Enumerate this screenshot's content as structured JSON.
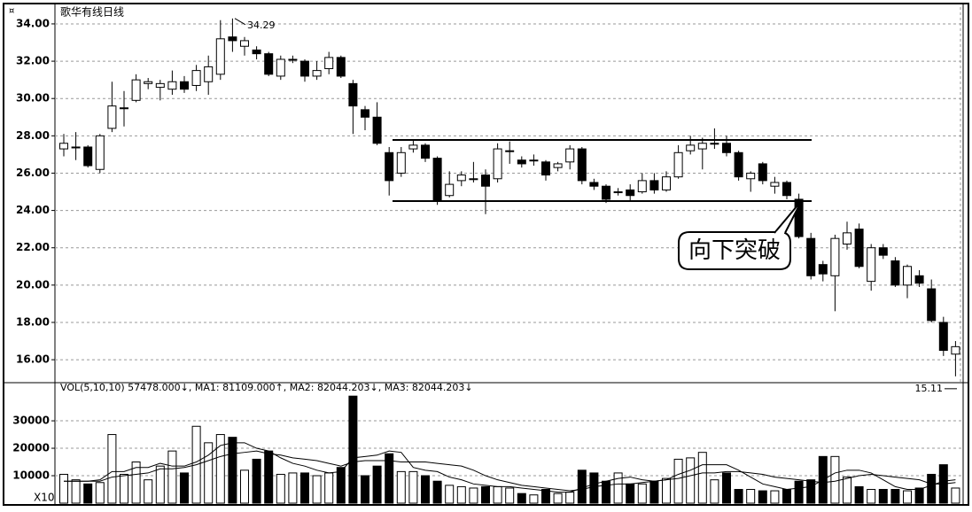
{
  "chart_data": [
    {
      "type": "candlestick",
      "title": "歌华有线日线",
      "open": [
        27.3,
        27.4,
        27.4,
        26.2,
        28.4,
        29.5,
        29.9,
        30.8,
        30.6,
        30.5,
        30.9,
        30.7,
        30.9,
        31.3,
        33.3,
        32.8,
        32.6,
        32.4,
        31.2,
        32.1,
        32.0,
        31.2,
        31.6,
        32.2,
        30.8,
        29.4,
        29.0,
        27.1,
        26.0,
        27.3,
        27.5,
        26.8,
        24.8,
        25.6,
        25.7,
        25.9,
        25.7,
        27.2,
        26.7,
        26.7,
        26.6,
        26.3,
        26.6,
        27.3,
        25.5,
        25.3,
        25.0,
        25.1,
        25.0,
        25.6,
        25.1,
        25.8,
        27.2,
        27.3,
        27.6,
        27.6,
        27.1,
        25.7,
        26.5,
        25.3,
        25.5,
        24.6,
        22.5,
        21.1,
        20.5,
        22.2,
        23.0,
        20.2,
        22.0,
        21.3,
        20.0,
        20.5,
        19.8,
        18.0,
        16.3
      ],
      "high": [
        28.1,
        28.2,
        27.5,
        28.1,
        30.9,
        30.4,
        31.3,
        31.1,
        31.0,
        31.5,
        31.2,
        31.8,
        32.3,
        34.2,
        34.29,
        33.3,
        32.8,
        32.5,
        32.3,
        32.3,
        32.1,
        32.0,
        32.5,
        32.3,
        31.0,
        29.6,
        29.8,
        27.4,
        27.4,
        27.8,
        27.6,
        26.9,
        26.1,
        26.1,
        26.6,
        26.2,
        27.6,
        27.7,
        26.9,
        27.0,
        26.7,
        26.6,
        27.5,
        27.4,
        25.7,
        25.4,
        25.2,
        25.4,
        26.0,
        26.0,
        26.1,
        27.5,
        28.0,
        27.9,
        28.4,
        28.0,
        27.2,
        26.1,
        26.6,
        25.8,
        25.6,
        24.9,
        22.8,
        21.3,
        22.7,
        23.4,
        23.3,
        22.2,
        22.2,
        21.5,
        21.1,
        20.8,
        20.3,
        18.3,
        17.0
      ],
      "low": [
        26.9,
        26.7,
        26.3,
        26.0,
        28.2,
        28.5,
        29.8,
        30.5,
        29.9,
        30.2,
        30.3,
        30.4,
        30.2,
        31.0,
        32.5,
        32.3,
        32.1,
        31.2,
        31.0,
        31.9,
        30.9,
        31.0,
        31.3,
        31.1,
        28.1,
        28.3,
        27.5,
        24.8,
        25.8,
        27.1,
        26.6,
        24.3,
        24.7,
        25.3,
        25.5,
        23.8,
        25.5,
        26.5,
        26.3,
        26.4,
        25.6,
        26.1,
        26.2,
        25.4,
        25.1,
        24.4,
        24.8,
        24.5,
        24.9,
        24.9,
        25.0,
        25.7,
        27.0,
        26.2,
        27.3,
        26.9,
        25.6,
        25.0,
        25.4,
        24.9,
        24.6,
        22.5,
        20.3,
        20.2,
        18.6,
        21.9,
        20.9,
        19.7,
        21.4,
        19.9,
        19.3,
        19.9,
        18.0,
        16.2,
        15.11
      ],
      "close": [
        27.6,
        27.4,
        26.4,
        28.0,
        29.6,
        29.5,
        31.0,
        30.9,
        30.8,
        30.9,
        30.5,
        31.5,
        31.7,
        33.2,
        33.1,
        33.1,
        32.4,
        31.3,
        32.1,
        32.1,
        31.2,
        31.5,
        32.2,
        31.2,
        29.6,
        29.0,
        27.6,
        25.6,
        27.1,
        27.5,
        26.8,
        24.5,
        25.4,
        25.9,
        25.7,
        25.3,
        27.3,
        27.2,
        26.5,
        26.7,
        25.9,
        26.5,
        27.3,
        25.6,
        25.3,
        24.6,
        25.0,
        24.8,
        25.6,
        25.1,
        25.8,
        27.1,
        27.5,
        27.6,
        27.6,
        27.1,
        25.8,
        26.0,
        25.6,
        25.5,
        24.8,
        22.6,
        20.5,
        20.6,
        22.5,
        22.8,
        21.0,
        22.0,
        21.6,
        20.0,
        21.0,
        20.1,
        18.1,
        16.5,
        16.7
      ],
      "ylim": [
        14.77,
        34.9
      ],
      "yticks": [
        {
          "value": 16,
          "label": "16.00"
        },
        {
          "value": 18,
          "label": "18.00"
        },
        {
          "value": 20,
          "label": "20.00"
        },
        {
          "value": 22,
          "label": "22.00"
        },
        {
          "value": 24,
          "label": "24.00"
        },
        {
          "value": 26,
          "label": "26.00"
        },
        {
          "value": 28,
          "label": "28.00"
        },
        {
          "value": 30,
          "label": "30.00"
        },
        {
          "value": 32,
          "label": "32.00"
        },
        {
          "value": 34,
          "label": "34.00"
        }
      ],
      "levels": [
        27.78,
        24.5
      ],
      "high_label": {
        "value": 34.29,
        "label": "34.29"
      },
      "low_label": {
        "value": 15.11,
        "label": "15.11"
      },
      "annotation": "向下突破",
      "grid": true
    },
    {
      "type": "bar",
      "title": "VOL(5,10,10) 57478.000↓, MA1: 81109.000↑, MA2: 82044.203↓, MA3: 82044.203↓",
      "values": [
        10500,
        8500,
        7000,
        7500,
        25000,
        10500,
        15000,
        8500,
        13500,
        19000,
        11000,
        28000,
        22000,
        25000,
        24000,
        12000,
        16000,
        19000,
        10500,
        11000,
        11000,
        10000,
        11000,
        13000,
        39000,
        10000,
        13500,
        18000,
        11500,
        11500,
        10000,
        8000,
        6500,
        6000,
        5500,
        6000,
        6000,
        5500,
        3500,
        3000,
        5000,
        3500,
        4000,
        12000,
        11000,
        8000,
        11000,
        7000,
        7000,
        8000,
        9000,
        16000,
        16500,
        18500,
        8500,
        11000,
        5000,
        5000,
        4500,
        4500,
        5000,
        8000,
        8500,
        17000,
        17000,
        9500,
        6000,
        5000,
        5000,
        5000,
        4500,
        5500,
        10500,
        14000,
        5500
      ],
      "ma_short": [
        8000,
        8000,
        8000,
        8500,
        11500,
        11500,
        13000,
        13000,
        14500,
        13500,
        13500,
        15000,
        17500,
        21000,
        22000,
        22000,
        20000,
        19000,
        16500,
        14500,
        13500,
        12000,
        11000,
        11500,
        16500,
        17000,
        17500,
        19000,
        18500,
        13000,
        12000,
        11500,
        9500,
        8500,
        7000,
        6500,
        6000,
        6000,
        5500,
        5000,
        4500,
        4000,
        4000,
        5500,
        7000,
        8000,
        9000,
        9500,
        8500,
        8000,
        8500,
        10500,
        12000,
        14000,
        14000,
        14000,
        12000,
        9500,
        7000,
        6000,
        5000,
        5500,
        6000,
        8500,
        11000,
        12000,
        12000,
        11000,
        8500,
        6000,
        5000,
        5000,
        6500,
        8000,
        8500
      ],
      "ma_long": [
        8000,
        8000,
        8000,
        8000,
        9500,
        10000,
        10500,
        11000,
        12500,
        12500,
        13000,
        14000,
        15500,
        17000,
        18000,
        18500,
        19000,
        18000,
        17500,
        16500,
        16000,
        15500,
        14500,
        13500,
        15000,
        15500,
        15500,
        15500,
        15000,
        15000,
        15000,
        14500,
        14000,
        13500,
        12000,
        10000,
        8500,
        7500,
        6500,
        6000,
        5500,
        5000,
        4500,
        5000,
        6000,
        6500,
        7000,
        7000,
        7500,
        8000,
        8500,
        9000,
        10000,
        11000,
        11000,
        11500,
        11500,
        11000,
        10500,
        9500,
        9000,
        8500,
        8000,
        7500,
        8000,
        9000,
        10000,
        10500,
        10000,
        9500,
        9000,
        8500,
        7000,
        7000,
        7500
      ],
      "ylim": [
        0,
        43900
      ],
      "yticks": [
        10000,
        20000,
        30000
      ],
      "unit_label": "X10",
      "grid": true
    }
  ]
}
